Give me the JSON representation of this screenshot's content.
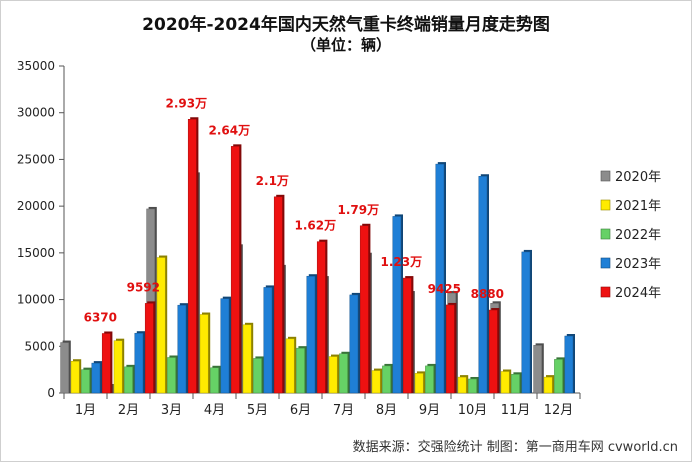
{
  "chart_data": {
    "type": "bar",
    "title": "2020年-2024年国内天然气重卡终端销量月度走势图",
    "subtitle": "（单位：辆）",
    "categories": [
      "1月",
      "2月",
      "3月",
      "4月",
      "5月",
      "6月",
      "7月",
      "8月",
      "9月",
      "10月",
      "11月",
      "12月"
    ],
    "ylim": [
      0,
      35000
    ],
    "yticks": [
      0,
      5000,
      10000,
      15000,
      20000,
      25000,
      30000,
      35000
    ],
    "series": [
      {
        "name": "2020年",
        "color": "#8c8c8c",
        "values": [
          5400,
          750,
          19700,
          23400,
          15700,
          13500,
          12300,
          14800,
          10700,
          10700,
          9600,
          5100
        ]
      },
      {
        "name": "2021年",
        "color": "#ffeb00",
        "values": [
          3400,
          5600,
          14500,
          8400,
          7300,
          5800,
          3900,
          2400,
          2100,
          1700,
          2300,
          1700
        ]
      },
      {
        "name": "2022年",
        "color": "#66d166",
        "values": [
          2500,
          2800,
          3800,
          2700,
          3700,
          4800,
          4200,
          2900,
          2900,
          1500,
          2000,
          3600
        ]
      },
      {
        "name": "2023年",
        "color": "#1f7fd6",
        "values": [
          3200,
          6400,
          9400,
          10100,
          11300,
          12500,
          10500,
          18900,
          24500,
          23200,
          15100,
          6100
        ]
      },
      {
        "name": "2024年",
        "color": "#ee1111",
        "values": [
          6370,
          9592,
          29300,
          26400,
          21000,
          16200,
          17900,
          12300,
          9425,
          8880,
          null,
          null
        ]
      }
    ],
    "data_labels": [
      "6370",
      "9592",
      "2.93万",
      "2.64万",
      "2.1万",
      "1.62万",
      "1.79万",
      "1.23万",
      "9425",
      "8880"
    ],
    "legend_position": "right",
    "grid": false,
    "source_note": "数据来源：交强险统计  制图：第一商用车网 cvworld.cn"
  }
}
